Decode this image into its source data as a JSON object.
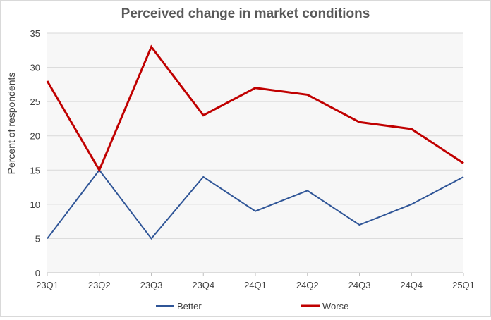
{
  "chart_data": {
    "type": "line",
    "title": "Perceived change in market conditions",
    "xlabel": "",
    "ylabel": "Percent of respondents",
    "categories": [
      "23Q1",
      "23Q2",
      "23Q3",
      "23Q4",
      "24Q1",
      "24Q2",
      "24Q3",
      "24Q4",
      "25Q1"
    ],
    "ylim": [
      0,
      35
    ],
    "yticks": [
      "0",
      "5",
      "10",
      "15",
      "20",
      "25",
      "30",
      "35"
    ],
    "grid": true,
    "legend_position": "bottom",
    "series": [
      {
        "name": "Better",
        "color": "#2f5597",
        "values": [
          5,
          15,
          5,
          14,
          9,
          12,
          7,
          10,
          14
        ]
      },
      {
        "name": "Worse",
        "color": "#c00000",
        "values": [
          28,
          15,
          33,
          23,
          27,
          26,
          22,
          21,
          16
        ]
      }
    ]
  }
}
